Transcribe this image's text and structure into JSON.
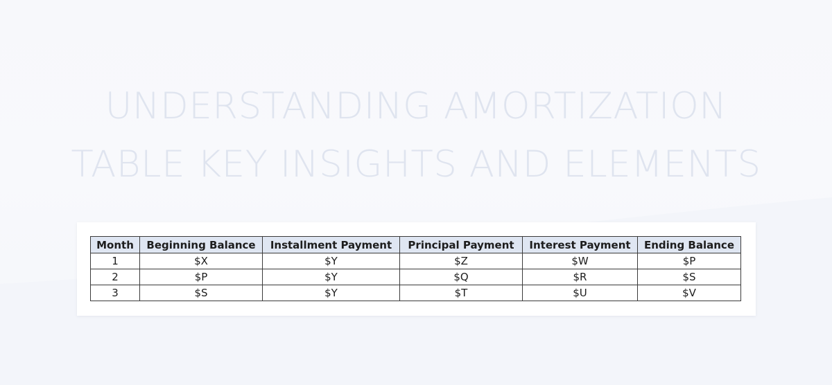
{
  "title": {
    "line1": "UNDERSTANDING AMORTIZATION",
    "line2": "TABLE KEY INSIGHTS AND ELEMENTS"
  },
  "table": {
    "headers": [
      "Month",
      "Beginning Balance",
      "Installment Payment",
      "Principal Payment",
      "Interest Payment",
      "Ending Balance"
    ],
    "rows": [
      [
        "1",
        "$X",
        "$Y",
        "$Z",
        "$W",
        "$P"
      ],
      [
        "2",
        "$P",
        "$Y",
        "$Q",
        "$R",
        "$S"
      ],
      [
        "3",
        "$S",
        "$Y",
        "$T",
        "$U",
        "$V"
      ]
    ]
  },
  "colors": {
    "title": "#dfe4ef",
    "header_fill": "#dfe6f2",
    "border": "#3a3a3a",
    "background": "#f7f8fb"
  }
}
